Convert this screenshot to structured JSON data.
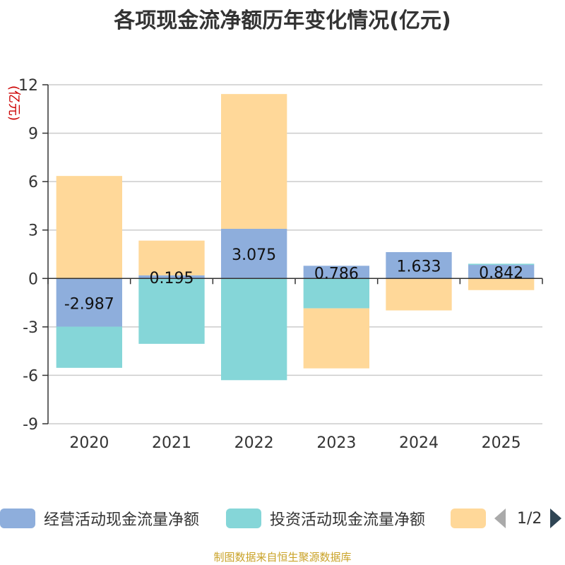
{
  "chart_data": {
    "type": "bar",
    "stacked": true,
    "title": "各项现金流净额历年变化情况(亿元)",
    "ylabel": "(亿元)",
    "xlabel": "",
    "ylim": [
      -9,
      12
    ],
    "yticks": [
      12,
      9,
      6,
      3,
      0,
      -3,
      -6,
      -9
    ],
    "categories": [
      "2020",
      "2021",
      "2022",
      "2023",
      "2024",
      "2025"
    ],
    "series": [
      {
        "name": "经营活动现金流量净额",
        "color": "#8eaedc",
        "values": [
          -2.987,
          0.195,
          3.075,
          0.786,
          1.633,
          0.842
        ]
      },
      {
        "name": "投资活动现金流量净额",
        "color": "#85d6d8",
        "values": [
          -2.55,
          -4.05,
          -6.3,
          -1.85,
          0.0,
          0.07
        ]
      },
      {
        "name": "",
        "color": "#ffd899",
        "values": [
          6.35,
          2.15,
          8.35,
          -3.72,
          -1.98,
          -0.72
        ]
      }
    ],
    "data_labels": [
      "-2.987",
      "0.195",
      "3.075",
      "0.786",
      "1.633",
      "0.842"
    ]
  },
  "legend": {
    "items": [
      "经营活动现金流量净额",
      "投资活动现金流量净额",
      ""
    ],
    "page": "1/2"
  },
  "source_note": "制图数据来自恒生聚源数据库"
}
